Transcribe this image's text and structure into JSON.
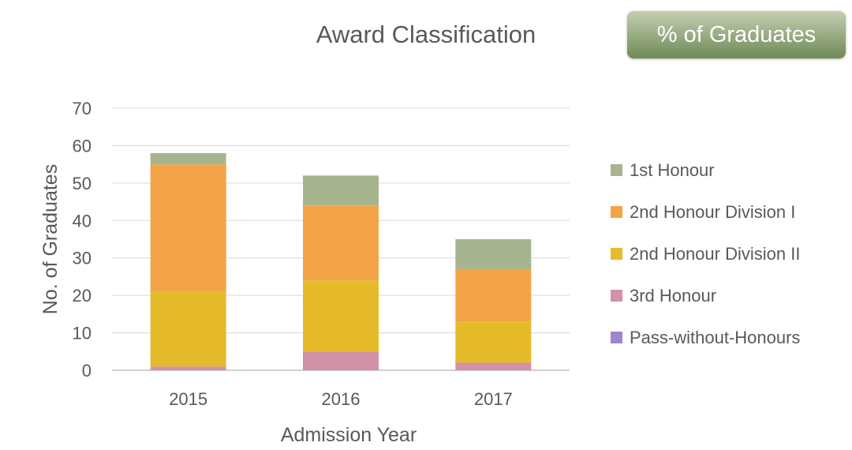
{
  "chart_data": {
    "type": "bar",
    "stacked": true,
    "title": "Award Classification",
    "xlabel": "Admission Year",
    "ylabel": "No.  of Graduates",
    "categories": [
      "2015",
      "2016",
      "2017"
    ],
    "ylim": [
      0,
      70
    ],
    "yticks": [
      0,
      10,
      20,
      30,
      40,
      50,
      60,
      70
    ],
    "grid": true,
    "legend_position": "right",
    "series": [
      {
        "name": "Pass-without-Honours",
        "color": "#9f85c9",
        "values": [
          0,
          0,
          0
        ]
      },
      {
        "name": "3rd Honour",
        "color": "#d291a8",
        "values": [
          1,
          5,
          2
        ]
      },
      {
        "name": "2nd Honour Division II",
        "color": "#e6bb2a",
        "values": [
          20,
          19,
          11
        ]
      },
      {
        "name": "2nd Honour Division I",
        "color": "#f3a447",
        "values": [
          34,
          20,
          14
        ]
      },
      {
        "name": "1st Honour",
        "color": "#a6b590",
        "values": [
          3,
          8,
          8
        ]
      }
    ]
  },
  "button": {
    "label": "% of Graduates"
  }
}
